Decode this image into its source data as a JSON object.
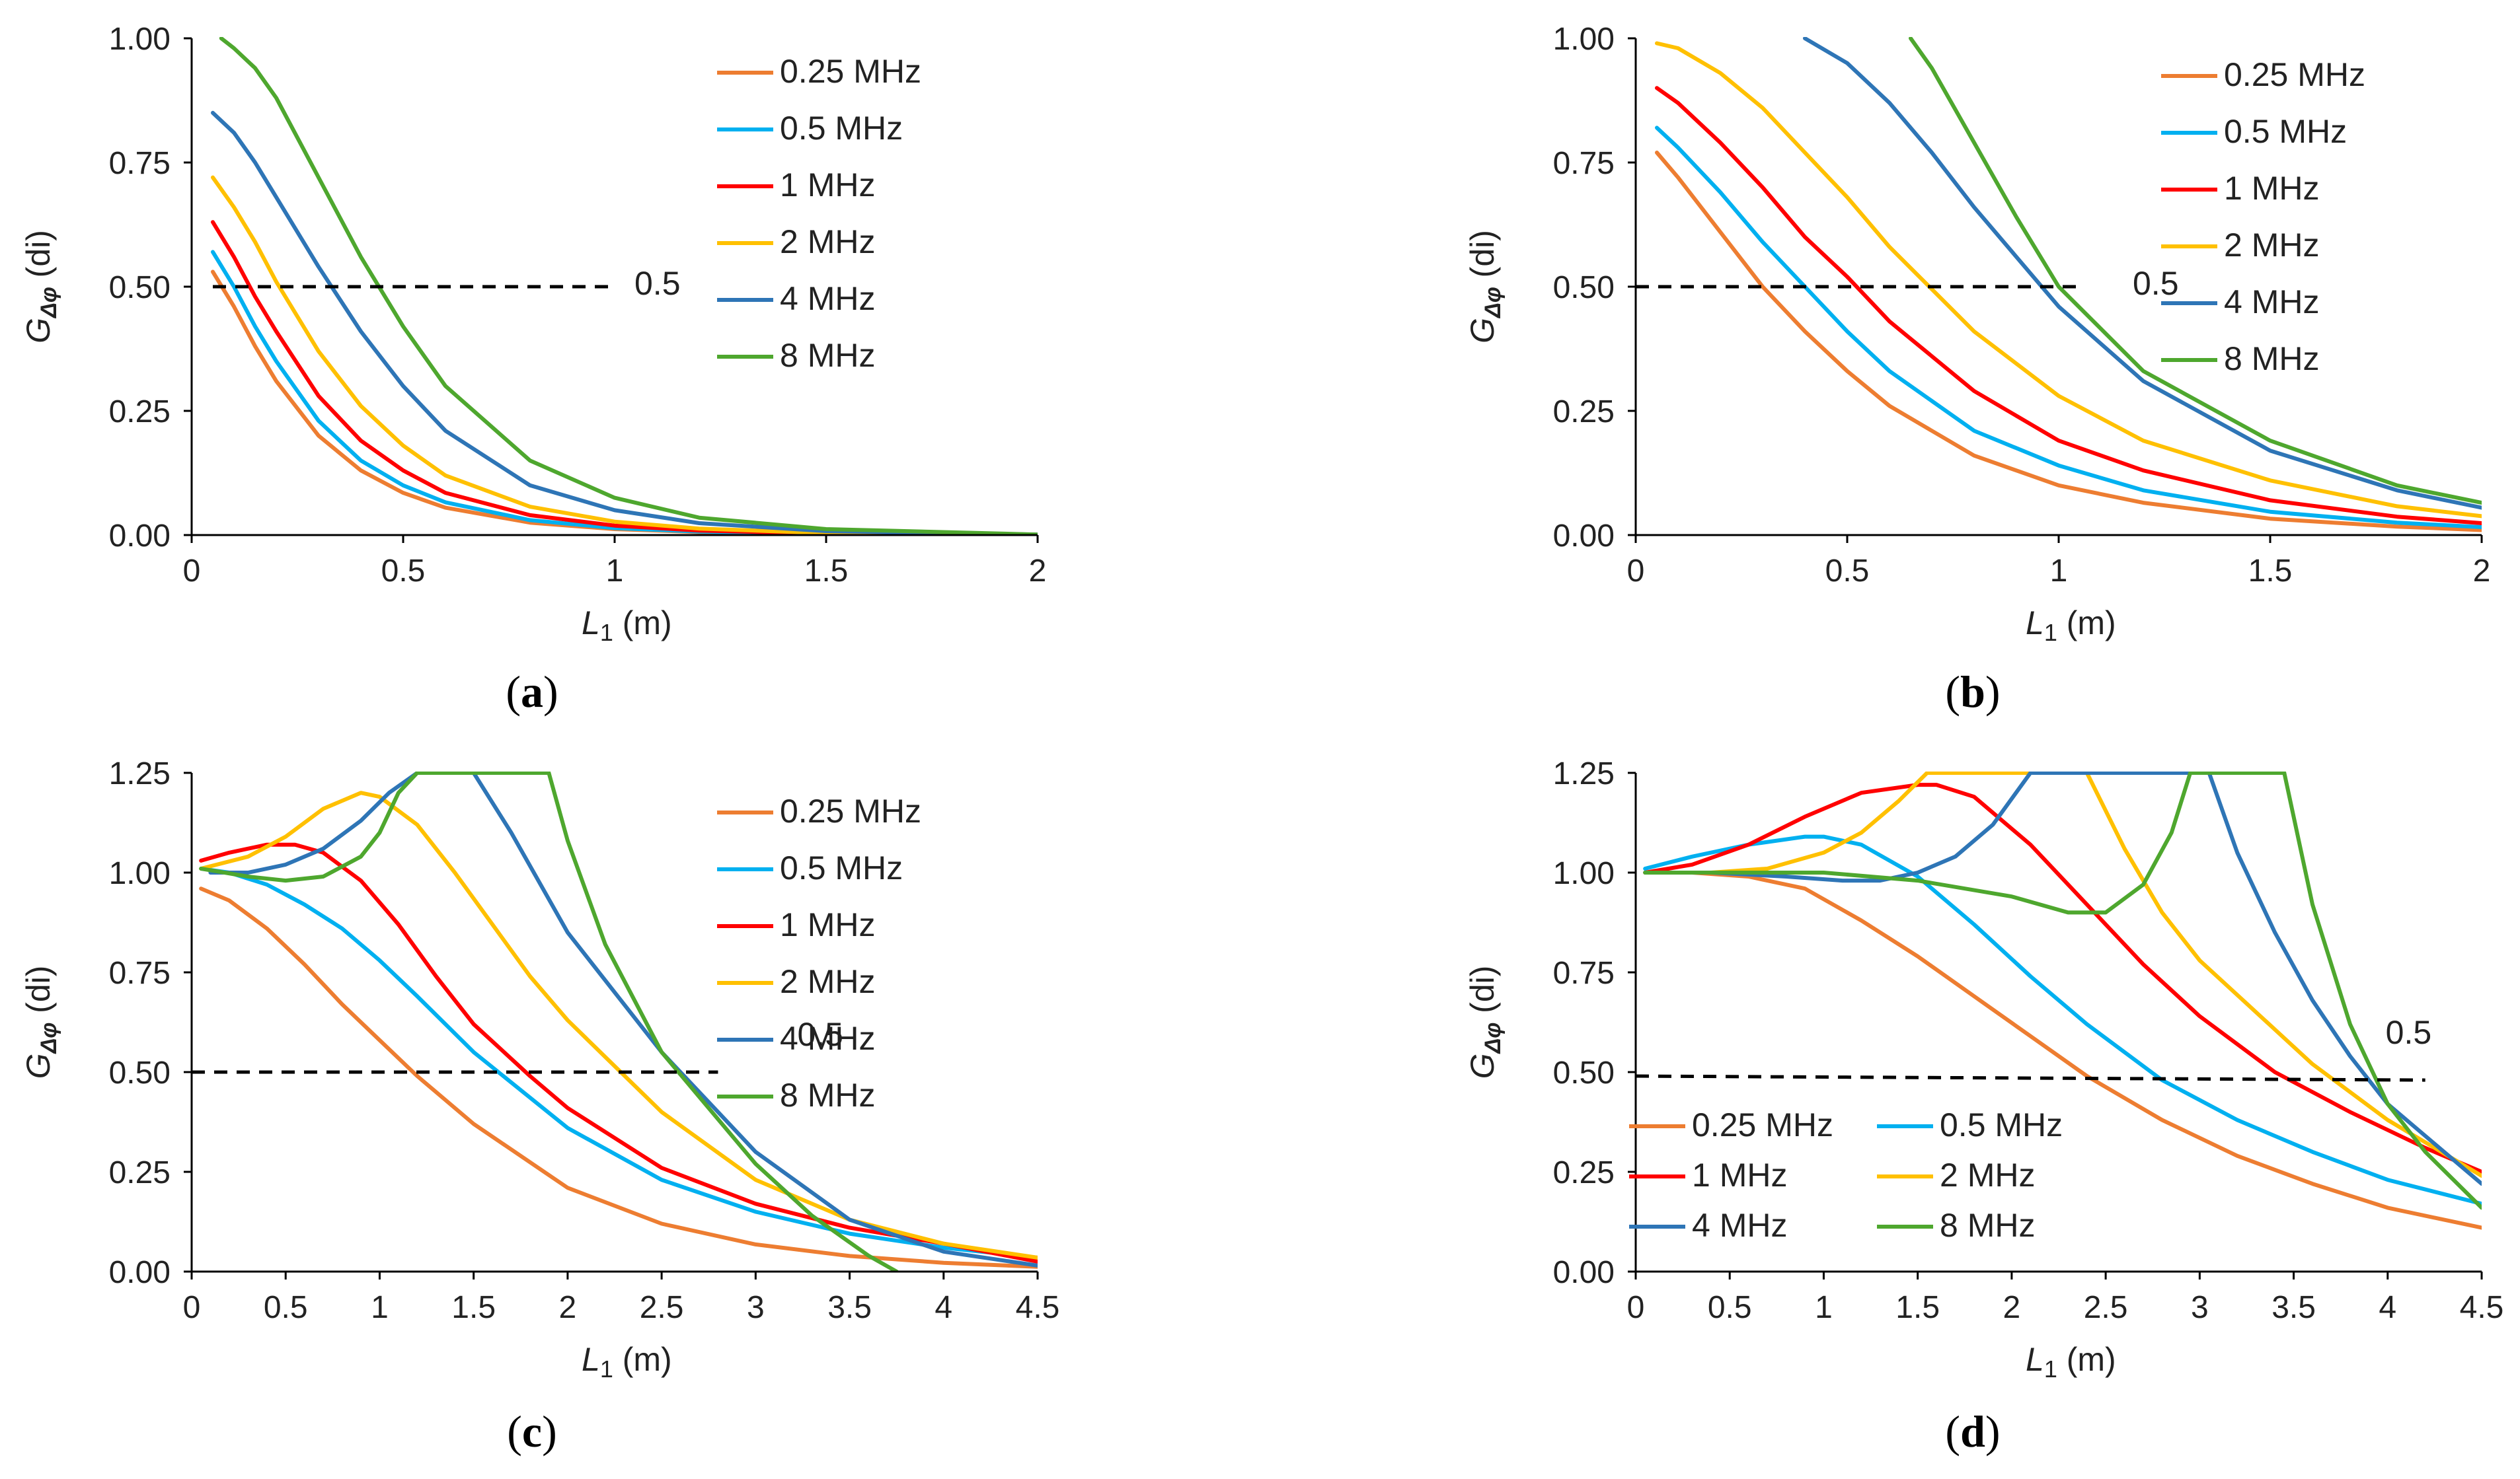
{
  "colors": {
    "f025": "#ED7D31",
    "f05": "#00B0F0",
    "f1": "#FF0000",
    "f2": "#FFC000",
    "f4": "#2E75B6",
    "f8": "#4EA72E",
    "dashed": "#000000",
    "axis": "#000000"
  },
  "chart_data": [
    {
      "type": "line",
      "panel": "a",
      "caption": "a",
      "xlabel_var": "L",
      "xlabel_sub": "1",
      "xlabel_unit": " (m)",
      "ylabel_var": "G",
      "ylabel_sub": "Δφ",
      "ylabel_unit": " (di)",
      "xlim": [
        0,
        2
      ],
      "ylim": [
        0,
        1
      ],
      "xticks": [
        0,
        0.5,
        1,
        1.5,
        2
      ],
      "xtick_labels": [
        "0",
        "0.5",
        "1",
        "1.5",
        "2"
      ],
      "yticks": [
        0,
        0.25,
        0.5,
        0.75,
        1
      ],
      "ytick_labels": [
        "0.00",
        "0.25",
        "0.50",
        "0.75",
        "1.00"
      ],
      "grid": false,
      "legend_position": "top-right",
      "legend_columns": 1,
      "reference_line": {
        "y": 0.5,
        "x_start": 0.05,
        "x_end": 1.0,
        "label": "0.5"
      },
      "series": [
        {
          "name": "0.25 MHz",
          "color_key": "f025",
          "x": [
            0.05,
            0.1,
            0.15,
            0.2,
            0.3,
            0.4,
            0.5,
            0.6,
            0.8,
            1.0,
            1.2,
            1.5,
            2.0
          ],
          "y": [
            0.53,
            0.46,
            0.38,
            0.31,
            0.2,
            0.13,
            0.085,
            0.055,
            0.025,
            0.012,
            0.006,
            0.002,
            0.0
          ]
        },
        {
          "name": "0.5 MHz",
          "color_key": "f05",
          "x": [
            0.05,
            0.1,
            0.15,
            0.2,
            0.3,
            0.4,
            0.5,
            0.6,
            0.8,
            1.0,
            1.2,
            1.5,
            2.0
          ],
          "y": [
            0.57,
            0.5,
            0.42,
            0.35,
            0.23,
            0.15,
            0.1,
            0.066,
            0.03,
            0.014,
            0.007,
            0.002,
            0.0
          ]
        },
        {
          "name": "1 MHz",
          "color_key": "f1",
          "x": [
            0.05,
            0.1,
            0.15,
            0.2,
            0.3,
            0.4,
            0.5,
            0.6,
            0.8,
            1.0,
            1.2,
            1.5,
            2.0
          ],
          "y": [
            0.63,
            0.56,
            0.48,
            0.41,
            0.28,
            0.19,
            0.13,
            0.085,
            0.04,
            0.019,
            0.009,
            0.003,
            0.0
          ]
        },
        {
          "name": "2 MHz",
          "color_key": "f2",
          "x": [
            0.05,
            0.1,
            0.15,
            0.2,
            0.3,
            0.4,
            0.5,
            0.6,
            0.8,
            1.0,
            1.2,
            1.5,
            2.0
          ],
          "y": [
            0.72,
            0.66,
            0.59,
            0.51,
            0.37,
            0.26,
            0.18,
            0.12,
            0.057,
            0.027,
            0.013,
            0.004,
            0.0
          ]
        },
        {
          "name": "4 MHz",
          "color_key": "f4",
          "x": [
            0.05,
            0.1,
            0.15,
            0.2,
            0.3,
            0.4,
            0.5,
            0.6,
            0.8,
            1.0,
            1.2,
            1.5,
            2.0
          ],
          "y": [
            0.85,
            0.81,
            0.75,
            0.68,
            0.54,
            0.41,
            0.3,
            0.21,
            0.1,
            0.05,
            0.024,
            0.008,
            0.001
          ]
        },
        {
          "name": "8 MHz",
          "color_key": "f8",
          "x": [
            0.07,
            0.1,
            0.15,
            0.2,
            0.3,
            0.4,
            0.5,
            0.6,
            0.8,
            1.0,
            1.2,
            1.5,
            2.0
          ],
          "y": [
            1.0,
            0.98,
            0.94,
            0.88,
            0.72,
            0.56,
            0.42,
            0.3,
            0.15,
            0.075,
            0.035,
            0.012,
            0.001
          ]
        }
      ]
    },
    {
      "type": "line",
      "panel": "b",
      "caption": "b",
      "xlabel_var": "L",
      "xlabel_sub": "1",
      "xlabel_unit": " (m)",
      "ylabel_var": "G",
      "ylabel_sub": "Δφ",
      "ylabel_unit": " (di)",
      "xlim": [
        0,
        2
      ],
      "ylim": [
        0,
        1
      ],
      "xticks": [
        0,
        0.5,
        1,
        1.5,
        2
      ],
      "xtick_labels": [
        "0",
        "0.5",
        "1",
        "1.5",
        "2"
      ],
      "yticks": [
        0,
        0.25,
        0.5,
        0.75,
        1
      ],
      "ytick_labels": [
        "0.00",
        "0.25",
        "0.50",
        "0.75",
        "1.00"
      ],
      "grid": false,
      "legend_position": "top-right",
      "legend_columns": 1,
      "reference_line": {
        "y": 0.5,
        "x_start": 0.0,
        "x_end": 1.05,
        "label": "0.5"
      },
      "series": [
        {
          "name": "0.25 MHz",
          "color_key": "f025",
          "x": [
            0.05,
            0.1,
            0.2,
            0.3,
            0.4,
            0.5,
            0.6,
            0.8,
            1.0,
            1.2,
            1.5,
            1.8,
            2.0
          ],
          "y": [
            0.77,
            0.72,
            0.61,
            0.5,
            0.41,
            0.33,
            0.26,
            0.16,
            0.1,
            0.065,
            0.033,
            0.017,
            0.01
          ]
        },
        {
          "name": "0.5 MHz",
          "color_key": "f05",
          "x": [
            0.05,
            0.1,
            0.2,
            0.3,
            0.4,
            0.5,
            0.6,
            0.8,
            1.0,
            1.2,
            1.5,
            1.8,
            2.0
          ],
          "y": [
            0.82,
            0.78,
            0.69,
            0.59,
            0.5,
            0.41,
            0.33,
            0.21,
            0.14,
            0.09,
            0.047,
            0.025,
            0.016
          ]
        },
        {
          "name": "1 MHz",
          "color_key": "f1",
          "x": [
            0.05,
            0.1,
            0.2,
            0.3,
            0.4,
            0.5,
            0.6,
            0.8,
            1.0,
            1.2,
            1.5,
            1.8,
            2.0
          ],
          "y": [
            0.9,
            0.87,
            0.79,
            0.7,
            0.6,
            0.52,
            0.43,
            0.29,
            0.19,
            0.13,
            0.07,
            0.037,
            0.024
          ]
        },
        {
          "name": "2 MHz",
          "color_key": "f2",
          "x": [
            0.05,
            0.1,
            0.2,
            0.3,
            0.4,
            0.5,
            0.6,
            0.8,
            1.0,
            1.2,
            1.5,
            1.8,
            2.0
          ],
          "y": [
            0.99,
            0.98,
            0.93,
            0.86,
            0.77,
            0.68,
            0.58,
            0.41,
            0.28,
            0.19,
            0.11,
            0.058,
            0.038
          ]
        },
        {
          "name": "4 MHz",
          "color_key": "f4",
          "x": [
            0.4,
            0.5,
            0.6,
            0.7,
            0.8,
            0.9,
            1.0,
            1.2,
            1.5,
            1.8,
            2.0
          ],
          "y": [
            1.0,
            0.95,
            0.87,
            0.77,
            0.66,
            0.56,
            0.46,
            0.31,
            0.17,
            0.09,
            0.055
          ]
        },
        {
          "name": "8 MHz",
          "color_key": "f8",
          "x": [
            0.65,
            0.7,
            0.8,
            0.9,
            1.0,
            1.2,
            1.5,
            1.8,
            2.0
          ],
          "y": [
            1.0,
            0.94,
            0.79,
            0.64,
            0.5,
            0.33,
            0.19,
            0.1,
            0.065
          ]
        }
      ]
    },
    {
      "type": "line",
      "panel": "c",
      "caption": "c",
      "xlabel_var": "L",
      "xlabel_sub": "1",
      "xlabel_unit": " (m)",
      "ylabel_var": "G",
      "ylabel_sub": "Δφ",
      "ylabel_unit": " (di)",
      "xlim": [
        0,
        4.5
      ],
      "ylim": [
        0,
        1.25
      ],
      "xticks": [
        0,
        0.5,
        1,
        1.5,
        2,
        2.5,
        3,
        3.5,
        4,
        4.5
      ],
      "xtick_labels": [
        "0",
        "0.5",
        "1",
        "1.5",
        "2",
        "2.5",
        "3",
        "3.5",
        "4",
        "4.5"
      ],
      "yticks": [
        0,
        0.25,
        0.5,
        0.75,
        1,
        1.25
      ],
      "ytick_labels": [
        "0.00",
        "0.25",
        "0.50",
        "0.75",
        "1.00",
        "1.25"
      ],
      "grid": false,
      "legend_position": "top-right",
      "legend_columns": 1,
      "reference_line": {
        "y": 0.5,
        "x_start": 0.0,
        "x_end": 2.8,
        "label": "0.5"
      },
      "series": [
        {
          "name": "0.25 MHz",
          "color_key": "f025",
          "x": [
            0.05,
            0.2,
            0.4,
            0.6,
            0.8,
            1.0,
            1.2,
            1.5,
            2.0,
            2.5,
            3.0,
            3.5,
            4.0,
            4.5
          ],
          "y": [
            0.96,
            0.93,
            0.86,
            0.77,
            0.67,
            0.58,
            0.49,
            0.37,
            0.21,
            0.12,
            0.068,
            0.039,
            0.022,
            0.012
          ]
        },
        {
          "name": "0.5 MHz",
          "color_key": "f05",
          "x": [
            0.05,
            0.2,
            0.4,
            0.6,
            0.8,
            1.0,
            1.2,
            1.5,
            2.0,
            2.5,
            3.0,
            3.5,
            4.0,
            4.5
          ],
          "y": [
            1.01,
            1.0,
            0.97,
            0.92,
            0.86,
            0.78,
            0.69,
            0.55,
            0.36,
            0.23,
            0.15,
            0.095,
            0.06,
            0.035
          ]
        },
        {
          "name": "1 MHz",
          "color_key": "f1",
          "x": [
            0.05,
            0.2,
            0.4,
            0.55,
            0.7,
            0.9,
            1.1,
            1.3,
            1.5,
            1.8,
            2.0,
            2.5,
            3.0,
            3.5,
            4.0,
            4.5
          ],
          "y": [
            1.03,
            1.05,
            1.07,
            1.07,
            1.05,
            0.98,
            0.87,
            0.74,
            0.62,
            0.49,
            0.41,
            0.26,
            0.17,
            0.11,
            0.07,
            0.025
          ]
        },
        {
          "name": "2 MHz",
          "color_key": "f2",
          "x": [
            0.05,
            0.3,
            0.5,
            0.7,
            0.9,
            1.0,
            1.2,
            1.4,
            1.6,
            1.8,
            2.0,
            2.5,
            3.0,
            3.5,
            4.0,
            4.5
          ],
          "y": [
            1.01,
            1.04,
            1.09,
            1.16,
            1.2,
            1.19,
            1.12,
            1.0,
            0.87,
            0.74,
            0.63,
            0.4,
            0.23,
            0.13,
            0.07,
            0.035
          ]
        },
        {
          "name": "4 MHz",
          "color_key": "f4",
          "x": [
            0.1,
            0.3,
            0.5,
            0.7,
            0.9,
            1.05,
            1.2,
            1.5,
            1.7,
            2.0,
            2.5,
            3.0,
            3.5,
            4.0,
            4.5
          ],
          "y": [
            1.0,
            1.0,
            1.02,
            1.06,
            1.13,
            1.2,
            1.25,
            1.25,
            1.1,
            0.85,
            0.55,
            0.3,
            0.13,
            0.05,
            0.015
          ]
        },
        {
          "name": "8 MHz",
          "color_key": "f8",
          "x": [
            0.05,
            0.3,
            0.5,
            0.7,
            0.9,
            1.0,
            1.1,
            1.2,
            1.9,
            2.0,
            2.2,
            2.5,
            3.0,
            3.3,
            3.6,
            3.75
          ],
          "y": [
            1.01,
            0.99,
            0.98,
            0.99,
            1.04,
            1.1,
            1.2,
            1.25,
            1.25,
            1.08,
            0.82,
            0.55,
            0.27,
            0.14,
            0.04,
            0.0
          ]
        }
      ]
    },
    {
      "type": "line",
      "panel": "d",
      "caption": "d",
      "xlabel_var": "L",
      "xlabel_sub": "1",
      "xlabel_unit": " (m)",
      "ylabel_var": "G",
      "ylabel_sub": "Δφ",
      "ylabel_unit": " (di)",
      "xlim": [
        0,
        4.5
      ],
      "ylim": [
        0,
        1.25
      ],
      "xticks": [
        0,
        0.5,
        1,
        1.5,
        2,
        2.5,
        3,
        3.5,
        4,
        4.5
      ],
      "xtick_labels": [
        "0",
        "0.5",
        "1",
        "1.5",
        "2",
        "2.5",
        "3",
        "3.5",
        "4",
        "4.5"
      ],
      "yticks": [
        0,
        0.25,
        0.5,
        0.75,
        1,
        1.25
      ],
      "ytick_labels": [
        "0.00",
        "0.25",
        "0.50",
        "0.75",
        "1.00",
        "1.25"
      ],
      "grid": false,
      "legend_position": "bottom-left",
      "legend_columns": 2,
      "reference_line": {
        "y": 0.49,
        "y_end": 0.48,
        "x_start": 0.0,
        "x_end": 4.2,
        "label": "0.5"
      },
      "series": [
        {
          "name": "0.25 MHz",
          "color_key": "f025",
          "x": [
            0.05,
            0.3,
            0.6,
            0.9,
            1.2,
            1.5,
            1.8,
            2.1,
            2.4,
            2.8,
            3.2,
            3.6,
            4.0,
            4.5
          ],
          "y": [
            1.0,
            1.0,
            0.99,
            0.96,
            0.88,
            0.79,
            0.69,
            0.59,
            0.49,
            0.38,
            0.29,
            0.22,
            0.16,
            0.11
          ]
        },
        {
          "name": "0.5 MHz",
          "color_key": "f05",
          "x": [
            0.05,
            0.3,
            0.6,
            0.9,
            1.0,
            1.2,
            1.5,
            1.8,
            2.1,
            2.4,
            2.8,
            3.2,
            3.6,
            4.0,
            4.5
          ],
          "y": [
            1.01,
            1.04,
            1.07,
            1.09,
            1.09,
            1.07,
            0.99,
            0.87,
            0.74,
            0.62,
            0.48,
            0.38,
            0.3,
            0.23,
            0.17
          ]
        },
        {
          "name": "1 MHz",
          "color_key": "f1",
          "x": [
            0.05,
            0.3,
            0.6,
            0.9,
            1.2,
            1.5,
            1.6,
            1.8,
            2.1,
            2.4,
            2.7,
            3.0,
            3.4,
            3.8,
            4.2,
            4.5
          ],
          "y": [
            1.0,
            1.02,
            1.07,
            1.14,
            1.2,
            1.22,
            1.22,
            1.19,
            1.07,
            0.92,
            0.77,
            0.64,
            0.5,
            0.4,
            0.31,
            0.25
          ]
        },
        {
          "name": "2 MHz",
          "color_key": "f2",
          "x": [
            0.05,
            0.4,
            0.7,
            1.0,
            1.2,
            1.4,
            1.55,
            2.4,
            2.6,
            2.8,
            3.0,
            3.3,
            3.6,
            4.0,
            4.5
          ],
          "y": [
            1.0,
            1.0,
            1.01,
            1.05,
            1.1,
            1.18,
            1.25,
            1.25,
            1.06,
            0.9,
            0.78,
            0.65,
            0.52,
            0.38,
            0.24
          ]
        },
        {
          "name": "4 MHz",
          "color_key": "f4",
          "x": [
            0.05,
            0.4,
            0.8,
            1.1,
            1.3,
            1.5,
            1.7,
            1.9,
            2.1,
            3.05,
            3.2,
            3.4,
            3.6,
            3.8,
            4.0,
            4.2,
            4.5
          ],
          "y": [
            1.0,
            1.0,
            0.99,
            0.98,
            0.98,
            1.0,
            1.04,
            1.12,
            1.25,
            1.25,
            1.05,
            0.85,
            0.68,
            0.54,
            0.42,
            0.34,
            0.22
          ]
        },
        {
          "name": "8 MHz",
          "color_key": "f8",
          "x": [
            0.05,
            0.5,
            1.0,
            1.5,
            2.0,
            2.3,
            2.5,
            2.7,
            2.85,
            2.95,
            3.45,
            3.6,
            3.8,
            4.0,
            4.2,
            4.5
          ],
          "y": [
            1.0,
            1.0,
            1.0,
            0.98,
            0.94,
            0.9,
            0.9,
            0.97,
            1.1,
            1.25,
            1.25,
            0.92,
            0.62,
            0.42,
            0.3,
            0.16
          ]
        }
      ]
    }
  ]
}
